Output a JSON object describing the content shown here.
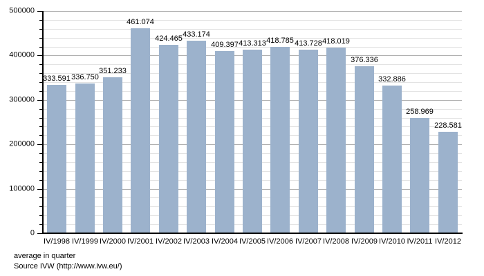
{
  "chart_data": {
    "type": "bar",
    "title": "",
    "xlabel": "",
    "ylabel": "",
    "categories": [
      "IV/1998",
      "IV/1999",
      "IV/2000",
      "IV/2001",
      "IV/2002",
      "IV/2003",
      "IV/2004",
      "IV/2005",
      "IV/2006",
      "IV/2007",
      "IV/2008",
      "IV/2009",
      "IV/2010",
      "IV/2011",
      "IV/2012"
    ],
    "values": [
      333591,
      336750,
      351233,
      461074,
      424465,
      433174,
      409397,
      413313,
      418785,
      413728,
      418019,
      376336,
      332886,
      258969,
      228581
    ],
    "value_labels": [
      "333.591",
      "336.750",
      "351.233",
      "461.074",
      "424.465",
      "433.174",
      "409.397",
      "413.313",
      "418.785",
      "413.728",
      "418.019",
      "376.336",
      "332.886",
      "258.969",
      "228.581"
    ],
    "ylim": [
      0,
      500000
    ],
    "y_major_step": 100000,
    "y_minor_step": 20000,
    "y_tick_labels": [
      "0",
      "100000",
      "200000",
      "300000",
      "400000",
      "500000"
    ],
    "grid": "horizontal-minor-and-major",
    "legend": "none",
    "bar_color": "#9cb2cc",
    "gridline_minor_color": "#e3e3e3",
    "gridline_major_color": "#b0b0b0",
    "axis_color": "#000000"
  },
  "footer": {
    "note": "average in quarter",
    "source": "Source IVW (http://www.ivw.eu/)"
  }
}
